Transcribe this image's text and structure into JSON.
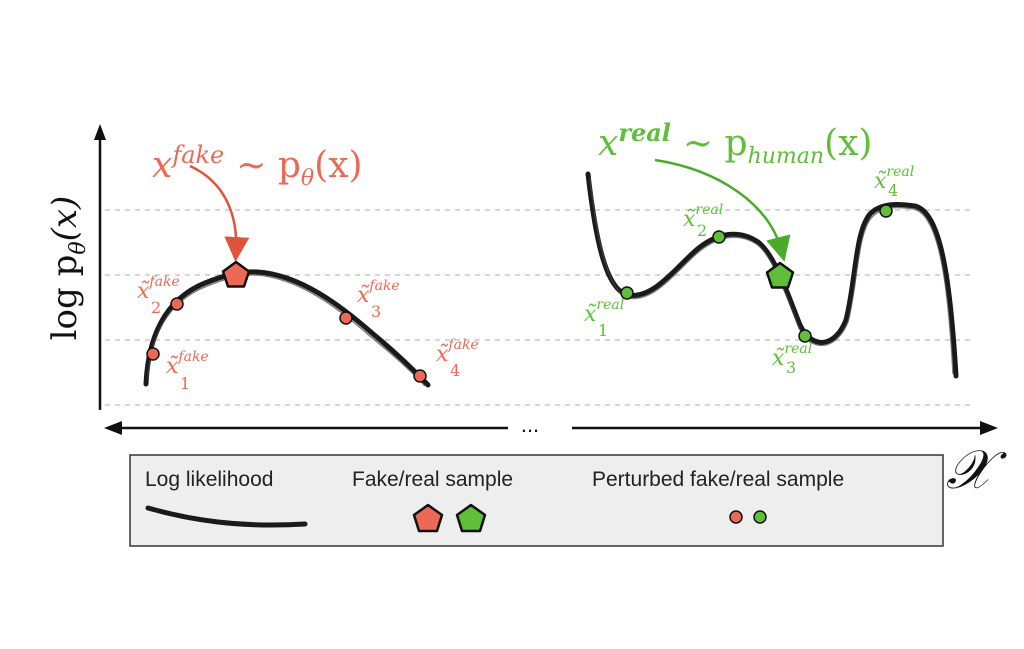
{
  "colors": {
    "fake": "#ec6a55",
    "real": "#5fbe3a",
    "curve": "#1a1a1a",
    "grid": "#c8c8c8",
    "legend_bg": "#eeeeee",
    "legend_border": "#333333"
  },
  "y_axis_label": {
    "base": "log p",
    "subscript": "θ",
    "arg": "(x)"
  },
  "x_axis_label": "𝒳",
  "axis_ellipsis": "...",
  "fake_panel": {
    "formula": {
      "x": "x",
      "sup": "fake",
      "rel": "~ p",
      "sub": "θ",
      "arg": "(x)"
    },
    "sample_icon": "pentagon-icon",
    "perturbed": [
      {
        "sym": "x̃",
        "sup": "fake",
        "sub": "1"
      },
      {
        "sym": "x̃",
        "sup": "fake",
        "sub": "2"
      },
      {
        "sym": "x̃",
        "sup": "fake",
        "sub": "3"
      },
      {
        "sym": "x̃",
        "sup": "fake",
        "sub": "4"
      }
    ]
  },
  "real_panel": {
    "formula": {
      "x": "x",
      "sup": "real",
      "rel": "~ p",
      "sub": "human",
      "arg": "(x)"
    },
    "sample_icon": "pentagon-icon",
    "perturbed": [
      {
        "sym": "x̃",
        "sup": "real",
        "sub": "1"
      },
      {
        "sym": "x̃",
        "sup": "real",
        "sub": "2"
      },
      {
        "sym": "x̃",
        "sup": "real",
        "sub": "3"
      },
      {
        "sym": "x̃",
        "sup": "real",
        "sub": "4"
      }
    ]
  },
  "legend": {
    "log_likelihood": "Log likelihood",
    "sample": "Fake/real sample",
    "perturbed": "Perturbed fake/real sample"
  }
}
